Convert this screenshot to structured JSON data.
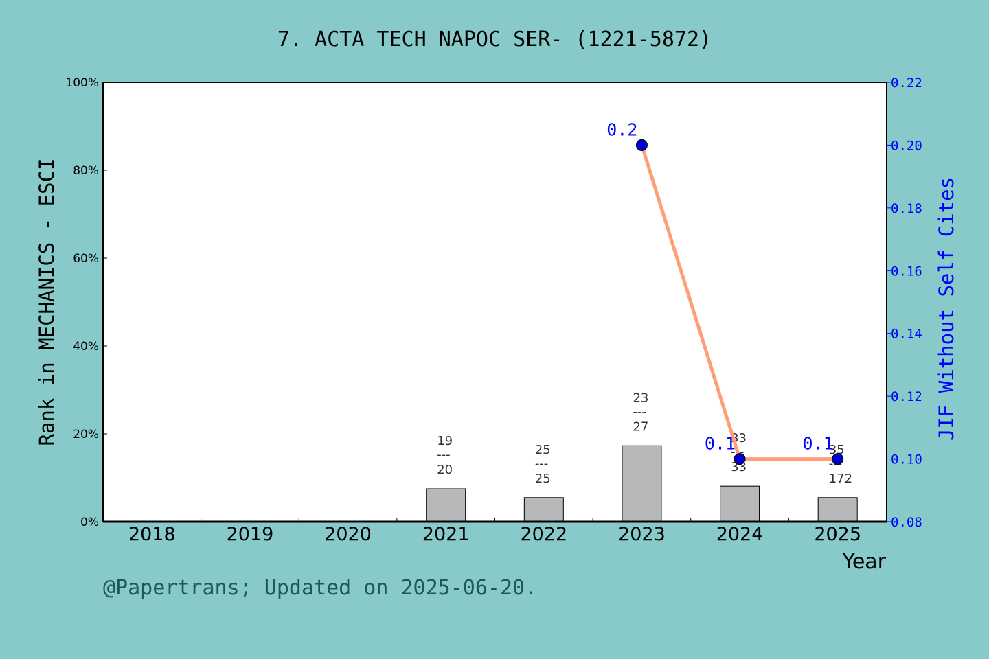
{
  "chart_data": {
    "type": "bar+line",
    "title": "7. ACTA TECH NAPOC SER- (1221-5872)",
    "xlabel": "Year",
    "ylabel_left": "Rank in MECHANICS - ESCI",
    "ylabel_right": "JIF Without Self Cites",
    "categories": [
      "2018",
      "2019",
      "2020",
      "2021",
      "2022",
      "2023",
      "2024",
      "2025"
    ],
    "left_ylim": [
      0,
      100
    ],
    "left_ticks": [
      "0%",
      "20%",
      "40%",
      "60%",
      "80%",
      "100%"
    ],
    "right_ylim": [
      0.08,
      0.22
    ],
    "right_ticks": [
      "0.08",
      "0.10",
      "0.12",
      "0.14",
      "0.16",
      "0.18",
      "0.20",
      "0.22"
    ],
    "bars": {
      "values_percent": [
        null,
        null,
        null,
        7.5,
        5.5,
        17.3,
        8.1,
        5.5
      ],
      "labels": [
        null,
        null,
        null,
        {
          "rank": "19",
          "sep": "---",
          "total": "20"
        },
        {
          "rank": "25",
          "sep": "---",
          "total": "25"
        },
        {
          "rank": "23",
          "sep": "---",
          "total": "27"
        },
        {
          "rank": "33",
          "sep": "---",
          "total": "33"
        },
        {
          "rank": "35",
          "sep": "---",
          "total": "172"
        }
      ],
      "color": "#b7b8b9"
    },
    "line": {
      "values": [
        null,
        null,
        null,
        null,
        null,
        0.2,
        0.1,
        0.1
      ],
      "labels": [
        null,
        null,
        null,
        null,
        null,
        "0.2",
        "0.1",
        "0.1"
      ],
      "line_color": "#ff9f7a",
      "marker_color": "#0000cc"
    },
    "grid": false,
    "left_axis_color": "#000000",
    "right_axis_color": "#0000ff"
  },
  "footer": "@Papertrans; Updated on 2025-06-20."
}
